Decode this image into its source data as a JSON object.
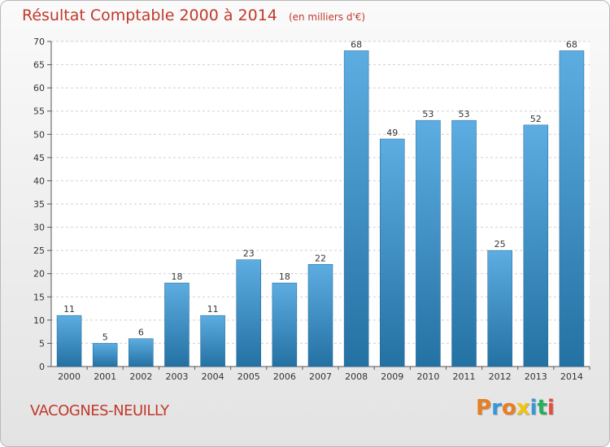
{
  "header": {
    "title": "Résultat Comptable 2000 à 2014",
    "subtitle": "(en milliers d'€)"
  },
  "footer": {
    "commune": "VACOGNES-NEUILLY",
    "brand": "Proxiti",
    "brand_colors": [
      "#e67e22",
      "#3498db",
      "#e67e22",
      "#f1c40f",
      "#3498db",
      "#27ae60",
      "#e74c3c"
    ]
  },
  "colors": {
    "bar_top": "#5dade2",
    "bar_bottom": "#2471a3",
    "title": "#c0392b"
  },
  "chart_data": {
    "type": "bar",
    "title": "Résultat Comptable 2000 à 2014",
    "subtitle": "(en milliers d'€)",
    "categories": [
      "2000",
      "2001",
      "2002",
      "2003",
      "2004",
      "2005",
      "2006",
      "2007",
      "2008",
      "2009",
      "2010",
      "2011",
      "2012",
      "2013",
      "2014"
    ],
    "values": [
      11,
      5,
      6,
      18,
      11,
      23,
      18,
      22,
      68,
      49,
      53,
      53,
      25,
      52,
      68
    ],
    "ylim": [
      0,
      70
    ],
    "yticks": [
      0,
      5,
      10,
      15,
      20,
      25,
      30,
      35,
      40,
      45,
      50,
      55,
      60,
      65,
      70
    ],
    "grid": true,
    "data_labels": true
  }
}
